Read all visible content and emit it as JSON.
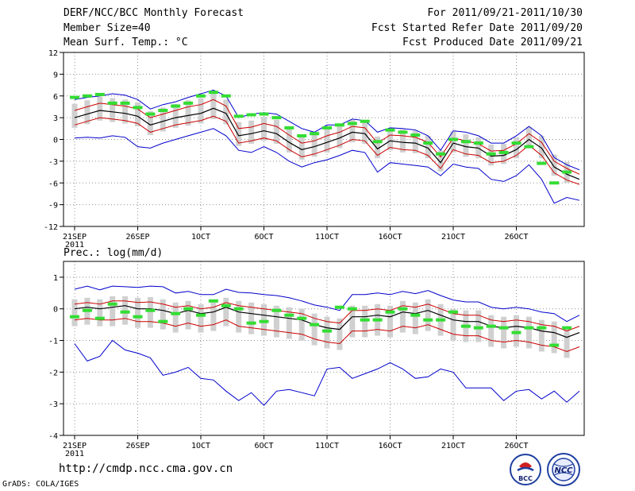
{
  "header": {
    "title": "DERF/NCC/BCC Monthly Forecast",
    "member_size": "Member Size=40",
    "variable": "Mean Surf. Temp.: °C",
    "forecast_period": "For 2011/09/21-2011/10/30",
    "started_date": "Fcst Started Refer Date 2011/09/20",
    "produced_date": "Fcst Produced Date 2011/09/21"
  },
  "footer": {
    "url": "http://cmdp.ncc.cma.gov.cn",
    "credit": "GrADS: COLA/IGES",
    "logo_bcc_text": "BCC",
    "logo_ncc_text": "NCC"
  },
  "colors": {
    "mean": "#000000",
    "spread": "#cc0000",
    "extreme": "#0000cc",
    "box": "#d0d0d0",
    "marker": "#33dd33",
    "grid": "#909090"
  },
  "chart_data": [
    {
      "type": "line",
      "name": "temperature",
      "title": "",
      "ylabel": "Mean Surf. Temp.: °C",
      "ylim": [
        -12,
        12
      ],
      "yticks": [
        12,
        9,
        6,
        3,
        0,
        -3,
        -6,
        -9,
        -12
      ],
      "xticks": [
        {
          "day": 0,
          "label": "21SEP",
          "sub": "2011"
        },
        {
          "day": 5,
          "label": "26SEP"
        },
        {
          "day": 10,
          "label": "1OCT"
        },
        {
          "day": 15,
          "label": "6OCT"
        },
        {
          "day": 20,
          "label": "11OCT"
        },
        {
          "day": 25,
          "label": "16OCT"
        },
        {
          "day": 30,
          "label": "21OCT"
        },
        {
          "day": 35,
          "label": "26OCT"
        }
      ],
      "days": 40,
      "series": [
        {
          "name": "ensemble max",
          "role": "extreme",
          "values": [
            5.5,
            5.8,
            6.0,
            6.3,
            6.1,
            5.5,
            4.2,
            4.8,
            5.2,
            5.8,
            6.3,
            6.8,
            6.0,
            3.0,
            3.5,
            3.7,
            3.5,
            2.5,
            1.5,
            1.0,
            2.0,
            2.0,
            2.8,
            2.6,
            1.0,
            1.6,
            1.5,
            1.3,
            0.5,
            -1.5,
            1.2,
            1.0,
            0.5,
            -0.5,
            -0.5,
            0.5,
            1.8,
            0.5,
            -2.5,
            -3.5,
            -4.2
          ]
        },
        {
          "name": "ensemble mean + spread",
          "role": "spread",
          "values": [
            4.0,
            4.5,
            5.0,
            4.8,
            4.6,
            4.2,
            3.0,
            3.5,
            4.0,
            4.5,
            4.8,
            5.5,
            4.6,
            1.5,
            1.7,
            2.2,
            1.8,
            0.6,
            -0.5,
            -0.2,
            0.5,
            1.0,
            1.8,
            1.6,
            -0.5,
            0.6,
            0.5,
            0.3,
            -0.4,
            -2.4,
            0.2,
            -0.2,
            -0.6,
            -1.6,
            -1.5,
            -0.6,
            0.8,
            -0.4,
            -3.0,
            -4.0,
            -4.8
          ]
        },
        {
          "name": "ensemble mean",
          "role": "mean",
          "values": [
            3.0,
            3.5,
            4.0,
            3.8,
            3.6,
            3.2,
            2.0,
            2.5,
            3.0,
            3.3,
            3.6,
            4.3,
            3.6,
            0.5,
            0.8,
            1.2,
            0.8,
            -0.4,
            -1.4,
            -1.0,
            -0.4,
            0.2,
            1.0,
            0.8,
            -1.3,
            -0.2,
            -0.4,
            -0.5,
            -1.2,
            -3.2,
            -0.5,
            -1.0,
            -1.2,
            -2.3,
            -2.2,
            -1.4,
            0.0,
            -1.2,
            -3.8,
            -4.8,
            -5.5
          ]
        },
        {
          "name": "ensemble mean - spread",
          "role": "spread",
          "values": [
            2.0,
            2.5,
            3.0,
            2.8,
            2.6,
            2.2,
            1.0,
            1.5,
            2.0,
            2.3,
            2.6,
            3.2,
            2.5,
            -0.5,
            -0.2,
            0.2,
            -0.2,
            -1.4,
            -2.4,
            -2.0,
            -1.4,
            -0.8,
            0.0,
            -0.2,
            -2.2,
            -1.1,
            -1.4,
            -1.5,
            -2.2,
            -4.0,
            -1.4,
            -2.0,
            -2.2,
            -3.2,
            -3.0,
            -2.2,
            -0.8,
            -2.2,
            -4.6,
            -5.6,
            -6.2
          ]
        },
        {
          "name": "ensemble min",
          "role": "extreme",
          "values": [
            0.2,
            0.3,
            0.2,
            0.5,
            0.3,
            -1.0,
            -1.2,
            -0.5,
            0.0,
            0.5,
            1.0,
            1.5,
            0.5,
            -1.5,
            -1.8,
            -1.0,
            -1.8,
            -3.0,
            -3.8,
            -3.2,
            -2.8,
            -2.2,
            -1.5,
            -1.8,
            -4.5,
            -3.2,
            -3.4,
            -3.6,
            -3.8,
            -5.0,
            -3.4,
            -3.8,
            -4.0,
            -5.5,
            -5.8,
            -5.0,
            -3.5,
            -5.5,
            -8.8,
            -8.0,
            -8.4
          ]
        },
        {
          "name": "observed",
          "role": "marker",
          "values": [
            5.8,
            6.0,
            6.2,
            5.0,
            5.0,
            4.4,
            3.5,
            4.0,
            4.6,
            5.0,
            6.0,
            6.5,
            6.0,
            3.2,
            3.4,
            3.5,
            3.0,
            1.6,
            0.5,
            0.8,
            1.6,
            2.0,
            2.2,
            2.5,
            -0.3,
            1.3,
            1.0,
            0.6,
            -0.5,
            -2.0,
            0.0,
            -0.3,
            -0.5,
            -2.0,
            -1.8,
            -0.5,
            -1.0,
            -3.3,
            -6.0,
            -4.5,
            -5.0
          ]
        }
      ]
    },
    {
      "type": "line",
      "name": "precipitation",
      "title": "",
      "ylabel": "Prec.: log(mm/d)",
      "ylim": [
        -4,
        1.5
      ],
      "yticks": [
        1,
        0,
        -1,
        -2,
        -3,
        -4
      ],
      "xticks": [
        {
          "day": 0,
          "label": "21SEP",
          "sub": "2011"
        },
        {
          "day": 5,
          "label": "26SEP"
        },
        {
          "day": 10,
          "label": "1OCT"
        },
        {
          "day": 15,
          "label": "6OCT"
        },
        {
          "day": 20,
          "label": "11OCT"
        },
        {
          "day": 25,
          "label": "16OCT"
        },
        {
          "day": 30,
          "label": "21OCT"
        },
        {
          "day": 35,
          "label": "26OCT"
        }
      ],
      "days": 40,
      "series": [
        {
          "name": "ensemble max",
          "role": "extreme",
          "values": [
            0.62,
            0.72,
            0.6,
            0.72,
            0.7,
            0.68,
            0.72,
            0.7,
            0.5,
            0.55,
            0.45,
            0.45,
            0.62,
            0.52,
            0.5,
            0.45,
            0.42,
            0.35,
            0.25,
            0.12,
            0.05,
            -0.05,
            0.45,
            0.45,
            0.5,
            0.45,
            0.55,
            0.48,
            0.58,
            0.42,
            0.28,
            0.22,
            0.22,
            0.05,
            0.0,
            0.05,
            0.0,
            -0.1,
            -0.15,
            -0.4,
            -0.2
          ]
        },
        {
          "name": "ensemble mean + spread",
          "role": "spread",
          "values": [
            0.15,
            0.2,
            0.15,
            0.25,
            0.25,
            0.2,
            0.22,
            0.15,
            0.05,
            0.1,
            0.0,
            0.05,
            0.2,
            0.1,
            0.05,
            0.0,
            -0.05,
            -0.1,
            -0.15,
            -0.3,
            -0.4,
            -0.45,
            -0.05,
            -0.05,
            0.0,
            -0.05,
            0.1,
            0.05,
            0.15,
            0.0,
            -0.15,
            -0.2,
            -0.2,
            -0.35,
            -0.4,
            -0.35,
            -0.4,
            -0.5,
            -0.55,
            -0.7,
            -0.55
          ]
        },
        {
          "name": "ensemble mean",
          "role": "mean",
          "values": [
            0.0,
            0.05,
            0.0,
            0.05,
            0.1,
            0.0,
            0.0,
            -0.05,
            -0.15,
            -0.05,
            -0.15,
            -0.1,
            0.05,
            -0.1,
            -0.15,
            -0.2,
            -0.25,
            -0.3,
            -0.35,
            -0.5,
            -0.6,
            -0.65,
            -0.25,
            -0.25,
            -0.2,
            -0.25,
            -0.1,
            -0.15,
            -0.05,
            -0.2,
            -0.35,
            -0.4,
            -0.4,
            -0.55,
            -0.6,
            -0.55,
            -0.6,
            -0.7,
            -0.75,
            -0.9,
            -0.75
          ]
        },
        {
          "name": "ensemble mean - spread",
          "role": "spread",
          "values": [
            -0.35,
            -0.3,
            -0.35,
            -0.35,
            -0.3,
            -0.4,
            -0.4,
            -0.45,
            -0.55,
            -0.45,
            -0.55,
            -0.5,
            -0.35,
            -0.55,
            -0.6,
            -0.65,
            -0.7,
            -0.75,
            -0.8,
            -0.95,
            -1.05,
            -1.1,
            -0.7,
            -0.7,
            -0.65,
            -0.7,
            -0.55,
            -0.6,
            -0.5,
            -0.65,
            -0.8,
            -0.85,
            -0.85,
            -1.0,
            -1.05,
            -1.0,
            -1.05,
            -1.15,
            -1.2,
            -1.35,
            -1.2
          ]
        },
        {
          "name": "ensemble min",
          "role": "extreme",
          "values": [
            -1.1,
            -1.65,
            -1.5,
            -1.0,
            -1.3,
            -1.4,
            -1.55,
            -2.1,
            -2.0,
            -1.85,
            -2.2,
            -2.25,
            -2.6,
            -2.9,
            -2.65,
            -3.05,
            -2.6,
            -2.55,
            -2.65,
            -2.75,
            -1.9,
            -1.85,
            -2.2,
            -2.05,
            -1.9,
            -1.7,
            -1.9,
            -2.2,
            -2.15,
            -1.9,
            -2.0,
            -2.5,
            -2.5,
            -2.5,
            -2.9,
            -2.6,
            -2.55,
            -2.85,
            -2.6,
            -2.95,
            -2.6
          ]
        },
        {
          "name": "observed",
          "role": "marker",
          "values": [
            -0.25,
            -0.05,
            -0.3,
            0.15,
            -0.1,
            -0.25,
            -0.05,
            -0.4,
            -0.15,
            0.0,
            -0.2,
            0.25,
            0.1,
            0.0,
            -0.45,
            -0.4,
            -0.05,
            -0.2,
            -0.3,
            -0.5,
            -0.7,
            0.05,
            0.0,
            -0.35,
            -0.35,
            -0.1,
            0.0,
            -0.2,
            -0.35,
            -0.35,
            -0.1,
            -0.55,
            -0.6,
            -0.55,
            -0.6,
            -0.75,
            -0.6,
            -0.6,
            -1.15,
            -0.6,
            -0.55
          ]
        }
      ]
    }
  ]
}
